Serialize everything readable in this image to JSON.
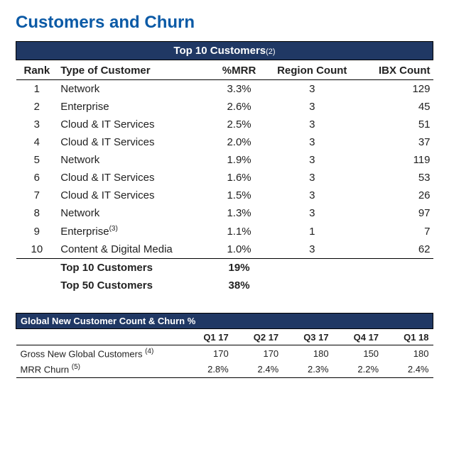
{
  "page_title": "Customers and Churn",
  "colors": {
    "title": "#0b5aa6",
    "banner_bg": "#203864",
    "banner_fg": "#ffffff",
    "border": "#000000",
    "text": "#222222"
  },
  "top10": {
    "title": "Top 10 Customers",
    "title_footnote": "(2)",
    "columns": [
      {
        "key": "rank",
        "label": "Rank",
        "align": "center",
        "width": "10%"
      },
      {
        "key": "type",
        "label": "Type of Customer",
        "align": "left",
        "width": "36%"
      },
      {
        "key": "mrr",
        "label": "%MRR",
        "align": "center",
        "width": "15%"
      },
      {
        "key": "region",
        "label": "Region Count",
        "align": "center",
        "width": "20%"
      },
      {
        "key": "ibx",
        "label": "IBX Count",
        "align": "right",
        "width": "19%"
      }
    ],
    "rows": [
      {
        "rank": "1",
        "type": "Network",
        "mrr": "3.3%",
        "region": "3",
        "ibx": "129"
      },
      {
        "rank": "2",
        "type": "Enterprise",
        "mrr": "2.6%",
        "region": "3",
        "ibx": "45"
      },
      {
        "rank": "3",
        "type": "Cloud & IT Services",
        "mrr": "2.5%",
        "region": "3",
        "ibx": "51"
      },
      {
        "rank": "4",
        "type": "Cloud & IT Services",
        "mrr": "2.0%",
        "region": "3",
        "ibx": "37"
      },
      {
        "rank": "5",
        "type": "Network",
        "mrr": "1.9%",
        "region": "3",
        "ibx": "119"
      },
      {
        "rank": "6",
        "type": "Cloud & IT Services",
        "mrr": "1.6%",
        "region": "3",
        "ibx": "53"
      },
      {
        "rank": "7",
        "type": "Cloud & IT Services",
        "mrr": "1.5%",
        "region": "3",
        "ibx": "26"
      },
      {
        "rank": "8",
        "type": "Network",
        "mrr": "1.3%",
        "region": "3",
        "ibx": "97"
      },
      {
        "rank": "9",
        "type": "Enterprise",
        "type_footnote": "(3)",
        "mrr": "1.1%",
        "region": "1",
        "ibx": "7"
      },
      {
        "rank": "10",
        "type": "Content & Digital Media",
        "mrr": "1.0%",
        "region": "3",
        "ibx": "62"
      }
    ],
    "summary": [
      {
        "label": "Top 10 Customers",
        "mrr": "19%"
      },
      {
        "label": "Top 50 Customers",
        "mrr": "38%"
      }
    ]
  },
  "churn": {
    "title": "Global New Customer Count & Churn %",
    "periods": [
      "Q1 17",
      "Q2 17",
      "Q3 17",
      "Q4 17",
      "Q1 18"
    ],
    "rows": [
      {
        "label": "Gross New Global Customers",
        "footnote": "(4)",
        "values": [
          "170",
          "170",
          "180",
          "150",
          "180"
        ]
      },
      {
        "label": "MRR Churn",
        "footnote": "(5)",
        "values": [
          "2.8%",
          "2.4%",
          "2.3%",
          "2.2%",
          "2.4%"
        ]
      }
    ]
  }
}
